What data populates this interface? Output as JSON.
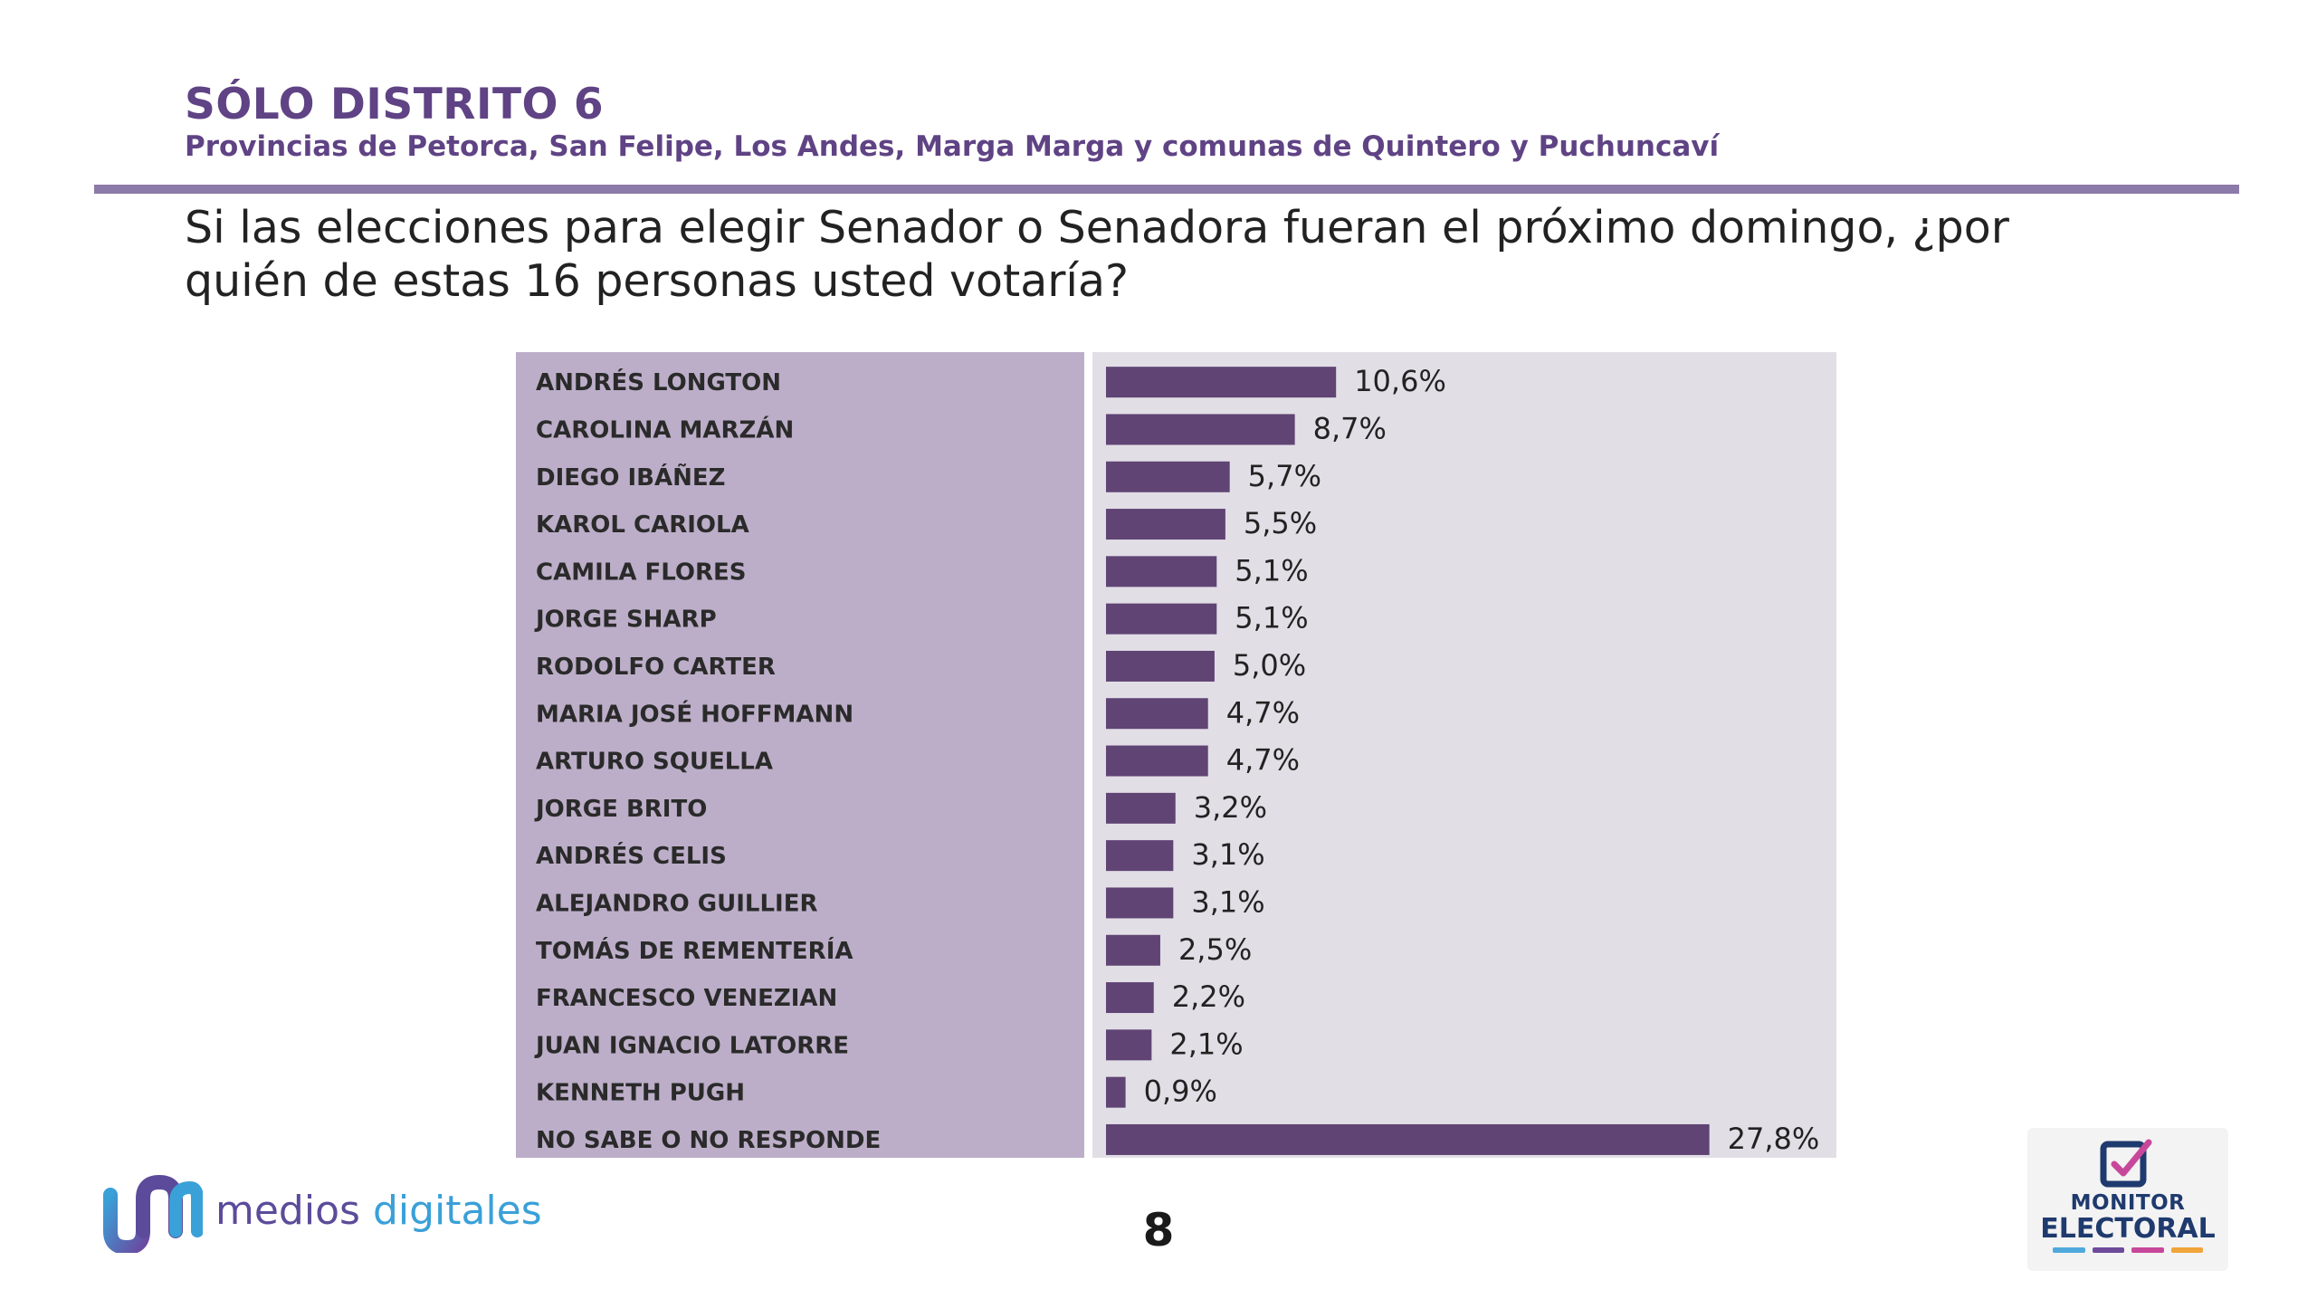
{
  "header": {
    "title": "SÓLO DISTRITO 6",
    "subtitle": "Provincias de Petorca, San Felipe, Los Andes, Marga Marga y comunas de Quintero y Puchuncaví",
    "question": "Si las elecciones para elegir Senador o Senadora fueran el próximo domingo, ¿por quién de estas 16 personas usted votaría?"
  },
  "chart_data": {
    "type": "bar",
    "orientation": "horizontal",
    "categories": [
      "ANDRÉS LONGTON",
      "CAROLINA MARZÁN",
      "DIEGO IBÁÑEZ",
      "KAROL CARIOLA",
      "CAMILA FLORES",
      "JORGE SHARP",
      "RODOLFO CARTER",
      "MARIA JOSÉ HOFFMANN",
      "ARTURO SQUELLA",
      "JORGE BRITO",
      "ANDRÉS CELIS",
      "ALEJANDRO GUILLIER",
      "TOMÁS DE REMENTERÍA",
      "FRANCESCO VENEZIAN",
      "JUAN IGNACIO LATORRE",
      "KENNETH PUGH",
      "NO SABE O NO RESPONDE"
    ],
    "values": [
      10.6,
      8.7,
      5.7,
      5.5,
      5.1,
      5.1,
      5.0,
      4.7,
      4.7,
      3.2,
      3.1,
      3.1,
      2.5,
      2.2,
      2.1,
      0.9,
      27.8
    ],
    "value_labels": [
      "10,6%",
      "8,7%",
      "5,7%",
      "5,5%",
      "5,1%",
      "5,1%",
      "5,0%",
      "4,7%",
      "4,7%",
      "3,2%",
      "3,1%",
      "3,1%",
      "2,5%",
      "2,2%",
      "2,1%",
      "0,9%",
      "27,8%"
    ],
    "unit": "%",
    "xlim": [
      0,
      29
    ],
    "grid": false,
    "legend": "none",
    "bar_color": "#5f4474",
    "label_panel_color": "#bcaec8",
    "bar_panel_color": "#e2dee6"
  },
  "footer": {
    "page_number": "8",
    "logo_left": {
      "word1": "medios",
      "word2": "digitales",
      "icon": "medios-digitales-logo-icon"
    },
    "logo_right": {
      "line1": "MONITOR",
      "line2": "ELECTORAL",
      "icon": "ballot-check-icon"
    }
  },
  "colors": {
    "title": "#5f4384",
    "rule": "#8c7aa8",
    "brand_purple": "#5c4b9a",
    "brand_blue": "#3aa0d8",
    "monitor_navy": "#1f3a6e",
    "monitor_stripes": [
      "#4fa9dc",
      "#6e4a9a",
      "#c7489a",
      "#f0a43a"
    ]
  }
}
